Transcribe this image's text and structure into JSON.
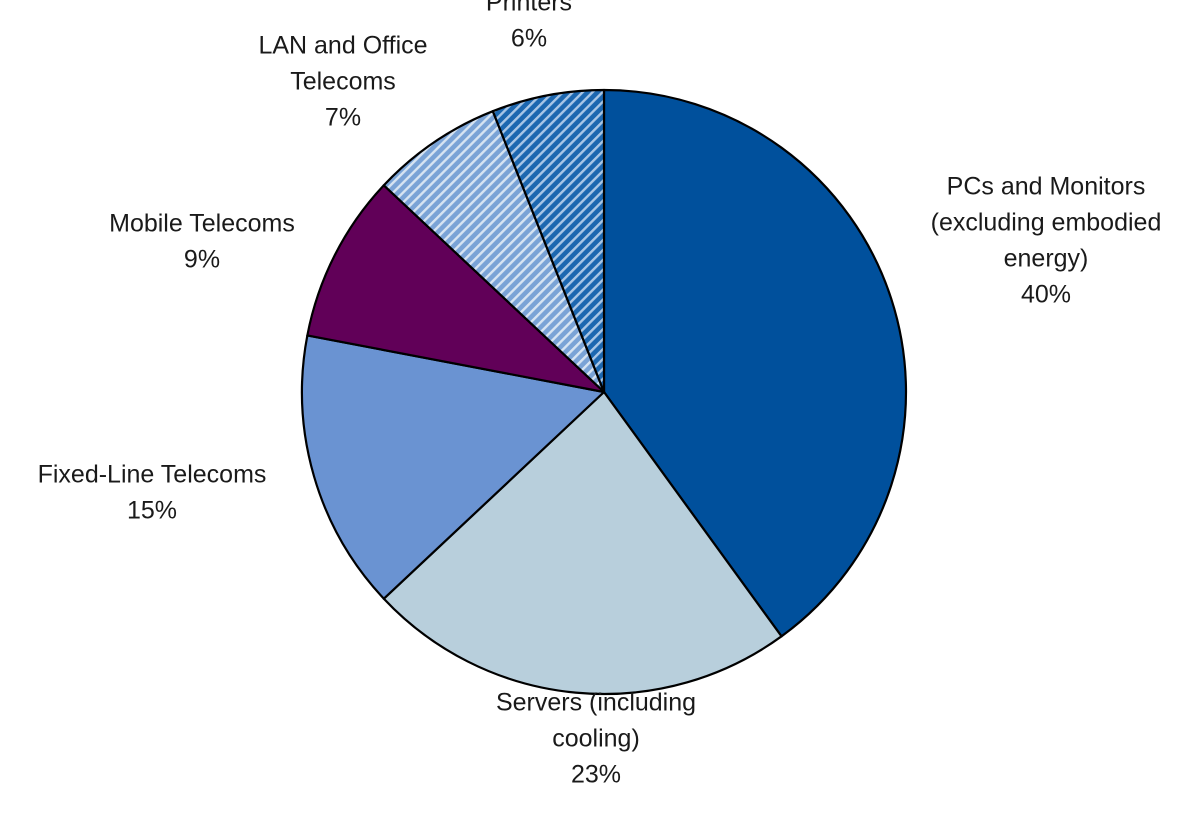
{
  "chart_data": {
    "type": "pie",
    "start": "12 o'clock",
    "direction": "clockwise",
    "legend": "none (labels placed next to slices)",
    "slices": [
      {
        "id": "pcs-and-monitors",
        "label_lines": [
          "PCs and Monitors",
          "(excluding embodied",
          "energy)"
        ],
        "percent_label": "40%",
        "value": 40,
        "color": "#00509c",
        "fill_style": "solid"
      },
      {
        "id": "servers",
        "label_lines": [
          "Servers (including",
          "cooling)"
        ],
        "percent_label": "23%",
        "value": 23,
        "color": "#b8cfdc",
        "fill_style": "solid"
      },
      {
        "id": "fixed-line-telecoms",
        "label_lines": [
          "Fixed-Line Telecoms"
        ],
        "percent_label": "15%",
        "value": 15,
        "color": "#6a93d2",
        "fill_style": "solid"
      },
      {
        "id": "mobile-telecoms",
        "label_lines": [
          "Mobile Telecoms"
        ],
        "percent_label": "9%",
        "value": 9,
        "color": "#610058",
        "fill_style": "solid"
      },
      {
        "id": "lan-and-office-telecoms",
        "label_lines": [
          "LAN and Office",
          "Telecoms"
        ],
        "percent_label": "7%",
        "value": 7,
        "color": "#7aa3d6",
        "fill_style": "hatched",
        "hatch_color": "#d7e4f2"
      },
      {
        "id": "printers",
        "label_lines": [
          "Printers"
        ],
        "percent_label": "6%",
        "value": 6,
        "color": "#1c67b0",
        "fill_style": "hatched",
        "hatch_color": "#a9c6e6"
      }
    ]
  }
}
